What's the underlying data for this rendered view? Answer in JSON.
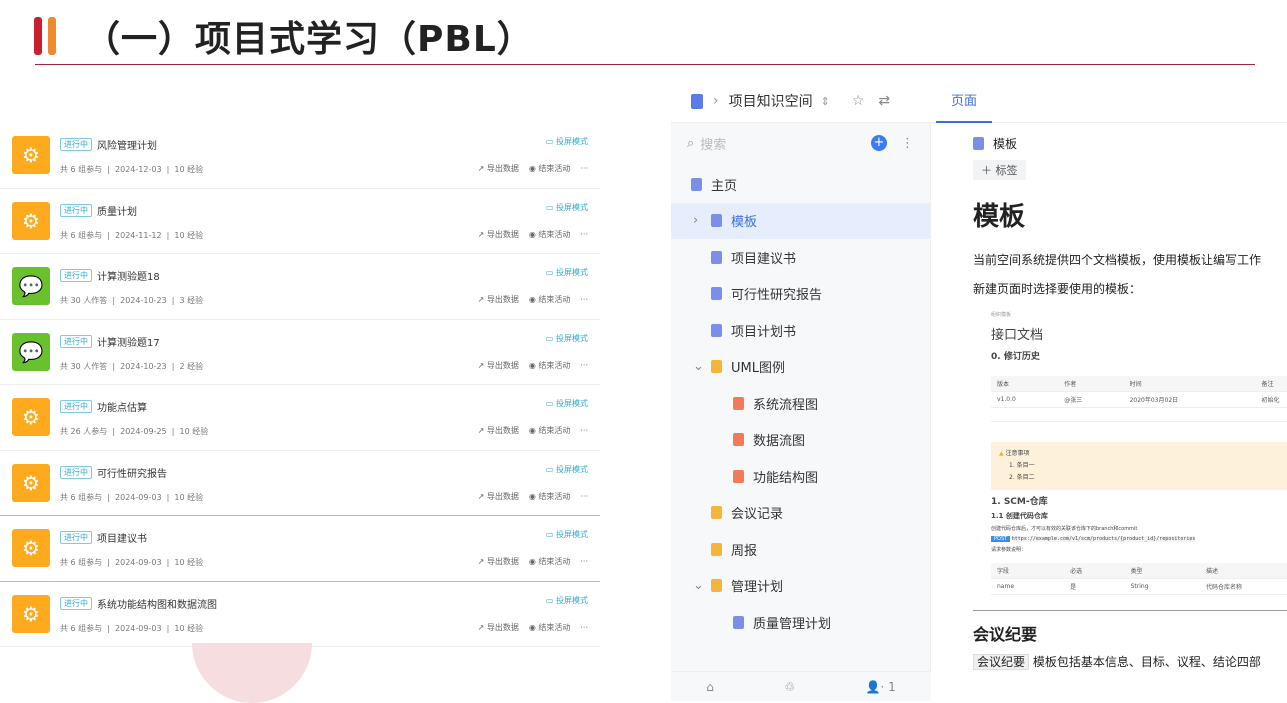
{
  "title": "（一）项目式学习（PBL）",
  "colors": {
    "bar1": "#c8202e",
    "bar2": "#f08a2c",
    "orange": "#fdaa1f",
    "green": "#6ac12e",
    "accent": "#3b7cf0"
  },
  "activities": [
    {
      "status": "进行中",
      "name": "风险管理计划",
      "meta": "共 6 组参与  |  2024-12-03  |  10 经验",
      "type": "group"
    },
    {
      "status": "进行中",
      "name": "质量计划",
      "meta": "共 6 组参与  |  2024-11-12  |  10 经验",
      "type": "group"
    },
    {
      "status": "进行中",
      "name": "计算测验题18",
      "meta": "共 30 人作答  |  2024-10-23  |  3 经验",
      "type": "quiz"
    },
    {
      "status": "进行中",
      "name": "计算测验题17",
      "meta": "共 30 人作答  |  2024-10-23  |  2 经验",
      "type": "quiz"
    },
    {
      "status": "进行中",
      "name": "功能点估算",
      "meta": "共 26 人参与  |  2024-09-25  |  10 经验",
      "type": "group"
    },
    {
      "status": "进行中",
      "name": "可行性研究报告",
      "meta": "共 6 组参与  |  2024-09-03  |  10 经验",
      "type": "group"
    },
    {
      "status": "进行中",
      "name": "项目建议书",
      "meta": "共 6 组参与  |  2024-09-03  |  10 经验",
      "type": "group"
    },
    {
      "status": "进行中",
      "name": "系统功能结构图和数据流图",
      "meta": "共 6 组参与  |  2024-09-03  |  10 经验",
      "type": "group"
    }
  ],
  "row_actions": {
    "project": "投屏模式",
    "export": "导出数据",
    "end": "结束活动",
    "more": "···"
  },
  "space": {
    "name": "项目知识空间",
    "tab": "页面",
    "search_placeholder": "搜索",
    "footer_count": "· 1"
  },
  "tree": [
    {
      "label": "主页",
      "kind": "doc",
      "level": 0
    },
    {
      "label": "模板",
      "kind": "doc",
      "level": 0,
      "chevron": "›",
      "selected": true
    },
    {
      "label": "项目建议书",
      "kind": "doc",
      "level": 1
    },
    {
      "label": "可行性研究报告",
      "kind": "doc",
      "level": 1
    },
    {
      "label": "项目计划书",
      "kind": "doc",
      "level": 1
    },
    {
      "label": "UML图例",
      "kind": "folder",
      "level": 0,
      "chevron": "⌄"
    },
    {
      "label": "系统流程图",
      "kind": "diagram",
      "level": 2
    },
    {
      "label": "数据流图",
      "kind": "diagram",
      "level": 2
    },
    {
      "label": "功能结构图",
      "kind": "diagram",
      "level": 2
    },
    {
      "label": "会议记录",
      "kind": "folder",
      "level": 1
    },
    {
      "label": "周报",
      "kind": "folder",
      "level": 1
    },
    {
      "label": "管理计划",
      "kind": "folder",
      "level": 0,
      "chevron": "⌄"
    },
    {
      "label": "质量管理计划",
      "kind": "doc",
      "level": 2
    }
  ],
  "doc": {
    "crumb": "模板",
    "tag_btn": "＋ 标签",
    "h1": "模板",
    "p1": "当前空间系统提供四个文档模板，使用模板让编写工作",
    "p2": "新建页面时选择要使用的模板：",
    "preview": {
      "org": "组织模板",
      "title": "接口文档",
      "h_rev": "0. 修订历史",
      "rev_head": [
        "版本",
        "作者",
        "时间",
        "备注"
      ],
      "rev_row": [
        "v1.0.0",
        "@张三",
        "2020年03月02日",
        "初始化"
      ],
      "note_title": "注意事项",
      "note_items": [
        "1. 条目一",
        "2. 条目二"
      ],
      "h_scm": "1. SCM-仓库",
      "h_create": "1.1 创建代码仓库",
      "desc": "创建代码仓库后，才可以有效的关联该仓库下的branch和commit",
      "method": "POST",
      "url": "https://example.com/v1/scm/products/{product_id}/repositories",
      "params": "请求参数说明：",
      "param_head": [
        "字段",
        "必选",
        "类型",
        "描述"
      ],
      "param_row": [
        "name",
        "是",
        "String",
        "代码仓库名称"
      ]
    },
    "h2": "会议纪要",
    "p3_tag": "会议纪要",
    "p3": "模板包括基本信息、目标、议程、结论四部"
  }
}
